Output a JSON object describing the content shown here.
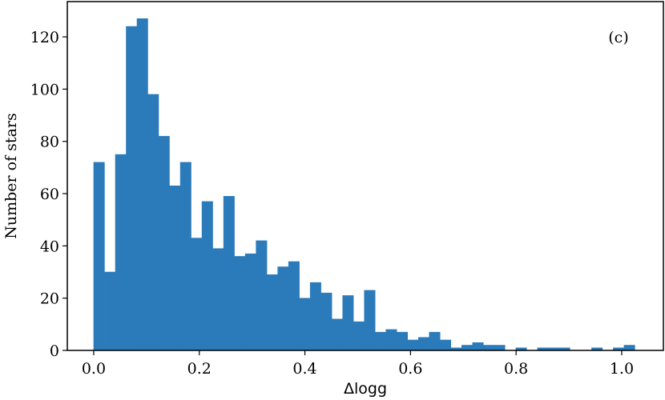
{
  "chart_data": {
    "type": "histogram",
    "xlabel": "Δlogg",
    "ylabel": "Number of stars",
    "annotation": "(c)",
    "color": "#2b7bba",
    "bins": [
      0,
      0.0205,
      0.041,
      0.0615,
      0.082,
      0.1025,
      0.123,
      0.1435,
      0.164,
      0.1845,
      0.205,
      0.2255,
      0.246,
      0.2665,
      0.287,
      0.3075,
      0.328,
      0.3485,
      0.369,
      0.3895,
      0.41,
      0.4305,
      0.451,
      0.4715,
      0.492,
      0.5125,
      0.533,
      0.5535,
      0.574,
      0.5945,
      0.615,
      0.6355,
      0.656,
      0.6765,
      0.697,
      0.7175,
      0.738,
      0.7585,
      0.779,
      0.7995,
      0.82,
      0.8405,
      0.861,
      0.8815,
      0.902,
      0.9225,
      0.943,
      0.9635,
      0.984,
      1.0045,
      1.025
    ],
    "values": [
      72,
      30,
      75,
      124,
      127,
      98,
      82,
      63,
      72,
      43,
      57,
      39,
      59,
      36,
      37,
      42,
      29,
      32,
      34,
      20,
      26,
      22,
      12,
      21,
      11,
      23,
      7,
      8,
      7,
      4,
      5,
      7,
      4,
      1,
      2,
      3,
      2,
      2,
      0,
      1,
      0,
      1,
      1,
      1,
      0,
      0,
      1,
      0,
      1,
      2
    ],
    "xlim": [
      -0.05,
      1.079
    ],
    "ylim": [
      0,
      133.5
    ],
    "xticks": [
      {
        "value": 0,
        "label": "0.0"
      },
      {
        "value": 0.2,
        "label": "0.2"
      },
      {
        "value": 0.4,
        "label": "0.4"
      },
      {
        "value": 0.6,
        "label": "0.6"
      },
      {
        "value": 0.8,
        "label": "0.8"
      },
      {
        "value": 1,
        "label": "1.0"
      }
    ],
    "yticks": [
      0,
      20,
      40,
      60,
      80,
      100,
      120
    ]
  }
}
